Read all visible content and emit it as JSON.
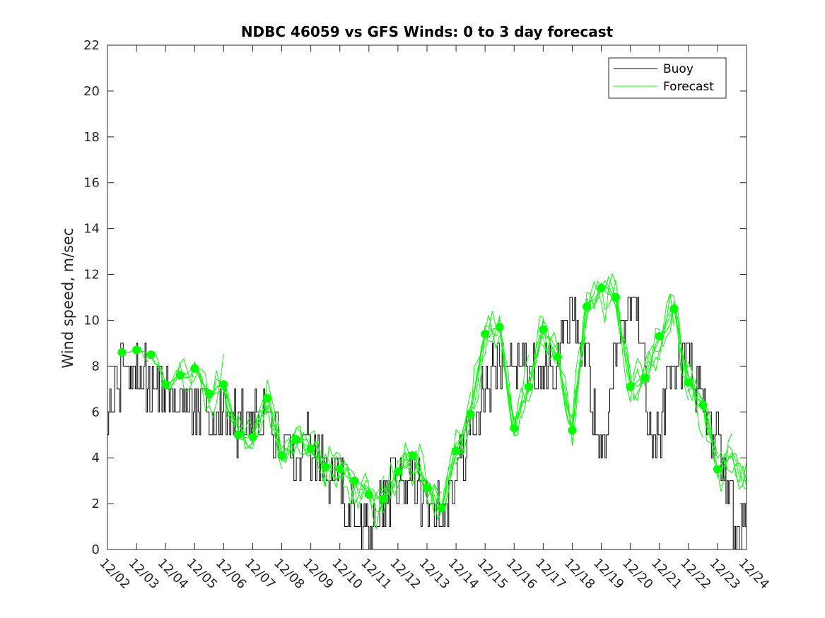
{
  "colors": {
    "buoy": "#000000",
    "forecast": "#00ff00",
    "axis": "#262626",
    "background": "#ffffff"
  },
  "chart_data": {
    "type": "line",
    "title": "NDBC 46059 vs GFS Winds: 0 to 3 day forecast",
    "xlabel": "",
    "ylabel": "Wind speed, m/sec",
    "ylim": [
      0,
      22
    ],
    "xlim": [
      0,
      22
    ],
    "y_ticks": [
      0,
      2,
      4,
      6,
      8,
      10,
      12,
      14,
      16,
      18,
      20,
      22
    ],
    "x_tick_labels": [
      "12/02",
      "12/03",
      "12/04",
      "12/05",
      "12/06",
      "12/07",
      "12/08",
      "12/09",
      "12/10",
      "12/11",
      "12/12",
      "12/13",
      "12/14",
      "12/15",
      "12/16",
      "12/17",
      "12/18",
      "12/19",
      "12/20",
      "12/21",
      "12/22",
      "12/23",
      "12/24"
    ],
    "legend": {
      "position": "top-right",
      "entries": [
        "Buoy",
        "Forecast"
      ]
    },
    "series": [
      {
        "name": "Buoy",
        "style": "step-line",
        "trend_day": [
          0,
          0.3,
          0.5,
          1.0,
          1.5,
          2.0,
          2.5,
          3.0,
          3.5,
          4.0,
          4.5,
          5.0,
          5.5,
          6.0,
          6.5,
          7.0,
          7.5,
          8.0,
          8.5,
          9.0,
          9.5,
          10.0,
          10.5,
          11.0,
          11.5,
          12.0,
          12.5,
          13.0,
          13.5,
          14.0,
          14.5,
          15.0,
          15.3,
          15.6,
          16.0,
          16.5,
          17.0,
          17.2,
          17.5,
          17.8,
          18.0,
          18.3,
          18.6,
          19.0,
          19.3,
          19.6,
          20.0,
          20.3,
          20.6,
          21.0,
          21.3,
          21.6,
          22.0
        ],
        "trend_value": [
          6.3,
          6.8,
          8.2,
          7.8,
          7.2,
          6.8,
          6.6,
          6.4,
          6.1,
          6.0,
          5.6,
          5.8,
          5.8,
          4.3,
          4.6,
          4.4,
          3.4,
          2.8,
          1.2,
          1.2,
          2.2,
          3.5,
          3.0,
          2.0,
          1.5,
          3.0,
          5.5,
          7.0,
          8.5,
          8.0,
          7.5,
          7.8,
          8.0,
          8.5,
          10.3,
          8.3,
          3.5,
          5.0,
          8.5,
          10.0,
          11.0,
          10.0,
          6.0,
          5.0,
          7.5,
          8.0,
          8.5,
          7.0,
          5.5,
          5.0,
          3.0,
          1.0,
          1.0
        ]
      },
      {
        "name": "Forecast",
        "style": "ensemble-lines",
        "trend_day": [
          0.5,
          1.0,
          1.5,
          2.0,
          2.5,
          3.0,
          3.5,
          4.0,
          4.5,
          5.0,
          5.5,
          6.0,
          6.5,
          7.0,
          7.5,
          8.0,
          8.5,
          9.0,
          9.5,
          10.0,
          10.5,
          11.0,
          11.5,
          12.0,
          12.5,
          13.0,
          13.5,
          14.0,
          14.5,
          15.0,
          15.5,
          16.0,
          16.5,
          17.0,
          17.5,
          18.0,
          18.5,
          19.0,
          19.5,
          20.0,
          20.5,
          21.0,
          21.5,
          22.0
        ],
        "trend_value": [
          8.6,
          8.7,
          8.5,
          7.2,
          7.6,
          7.9,
          6.8,
          7.2,
          5.0,
          4.9,
          6.6,
          4.1,
          4.8,
          4.4,
          3.6,
          3.5,
          3.0,
          2.4,
          2.2,
          3.4,
          4.1,
          2.7,
          1.8,
          4.3,
          5.9,
          9.4,
          9.7,
          5.3,
          7.1,
          9.6,
          8.4,
          5.2,
          10.6,
          11.4,
          11.0,
          7.1,
          7.5,
          9.3,
          10.5,
          7.3,
          6.3,
          3.5,
          4.0,
          3.0
        ]
      }
    ],
    "analysis_points": {
      "day": [
        0.5,
        1.0,
        1.5,
        2.0,
        2.5,
        3.0,
        3.5,
        4.0,
        4.5,
        5.0,
        5.5,
        6.0,
        6.5,
        7.0,
        7.5,
        8.0,
        8.5,
        9.0,
        9.5,
        10.0,
        10.5,
        11.0,
        11.5,
        12.0,
        12.5,
        13.0,
        13.5,
        14.0,
        14.5,
        15.0,
        15.5,
        16.0,
        16.5,
        17.0,
        17.5,
        18.0,
        18.5,
        19.0,
        19.5,
        20.0,
        20.5,
        21.0
      ],
      "value": [
        8.6,
        8.7,
        8.5,
        7.2,
        7.6,
        7.9,
        6.8,
        7.2,
        5.0,
        4.9,
        6.6,
        4.1,
        4.8,
        4.4,
        3.6,
        3.5,
        3.0,
        2.4,
        2.2,
        3.4,
        4.1,
        2.7,
        1.8,
        4.3,
        5.9,
        9.4,
        9.7,
        5.3,
        7.1,
        9.6,
        8.4,
        5.2,
        10.6,
        11.4,
        11.0,
        7.1,
        7.5,
        9.3,
        10.5,
        7.3,
        6.3,
        3.5
      ]
    }
  }
}
